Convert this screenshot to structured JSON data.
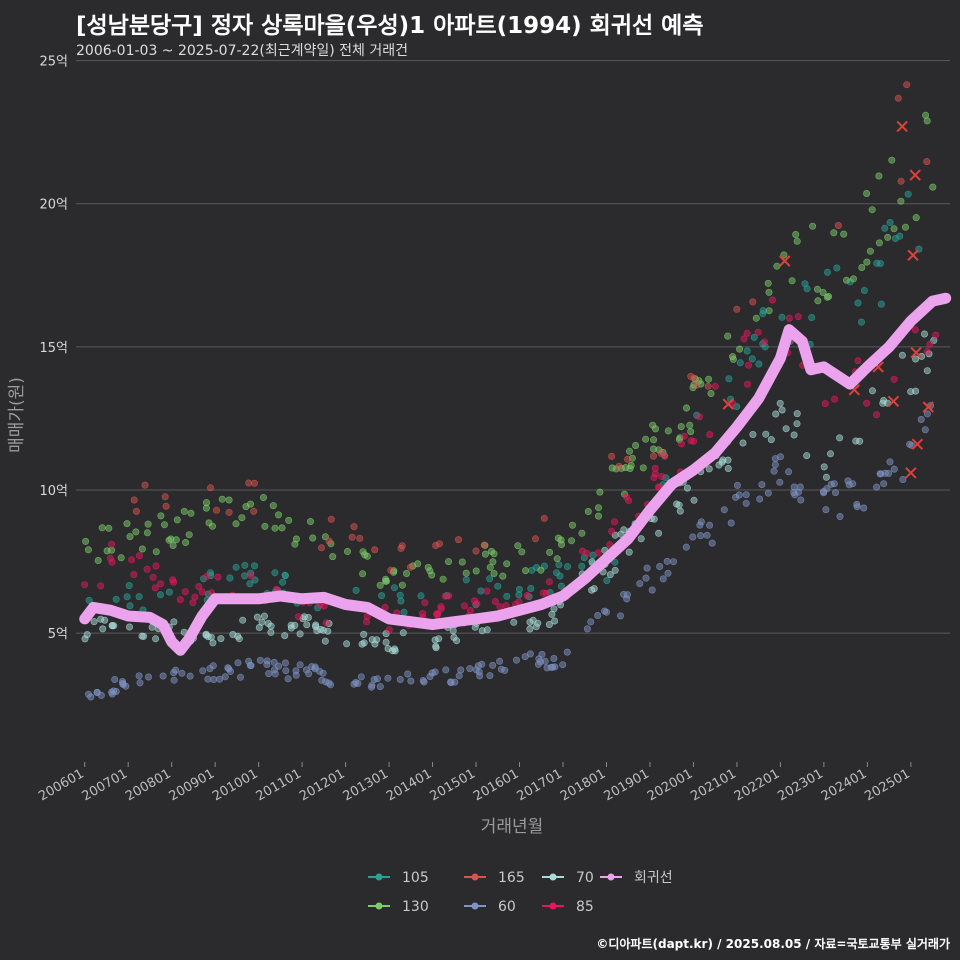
{
  "header": {
    "title": "[성남분당구] 정자 상록마을(우성)1 아파트(1994) 회귀선 예측",
    "subtitle": "2006-01-03 ~ 2025-07-22(최근계약일) 전체 거래건"
  },
  "footer": {
    "credit": "©디아파트(dapt.kr) / 2025.08.05 / 자료=국토교통부 실거래가"
  },
  "chart_data": {
    "type": "scatter",
    "xlabel": "거래년월",
    "ylabel": "매매가(원)",
    "xlim": [
      2005.8,
      2025.9
    ],
    "ylim": [
      0.5,
      25.3
    ],
    "y_ticks": [
      {
        "value": 5,
        "label": "5억"
      },
      {
        "value": 10,
        "label": "10억"
      },
      {
        "value": 15,
        "label": "15억"
      },
      {
        "value": 20,
        "label": "20억"
      },
      {
        "value": 25,
        "label": "25억"
      }
    ],
    "x_ticks": [
      "200601",
      "200701",
      "200801",
      "200901",
      "201001",
      "201101",
      "201201",
      "201301",
      "201401",
      "201501",
      "201601",
      "201701",
      "201801",
      "201901",
      "202001",
      "202101",
      "202201",
      "202301",
      "202401",
      "202501"
    ],
    "grid": "horizontal",
    "legend_position": "bottom",
    "legend_rows": [
      [
        "105",
        "165",
        "70",
        "회귀선"
      ],
      [
        "130",
        "60",
        "85"
      ]
    ],
    "colors": {
      "105": "#2aa198",
      "130": "#7ccc6a",
      "165": "#d9534f",
      "60": "#7f94c4",
      "70": "#a8dcd8",
      "85": "#e8175d",
      "회귀선": "#eaa3ec",
      "grid": "#5a5a5c"
    },
    "series": [
      {
        "name": "105",
        "anchors": [
          [
            2006.0,
            5.9
          ],
          [
            2008.0,
            6.5
          ],
          [
            2010.0,
            6.9
          ],
          [
            2012.0,
            6.0
          ],
          [
            2014.0,
            6.3
          ],
          [
            2016.0,
            6.7
          ],
          [
            2018.0,
            7.3
          ],
          [
            2019.5,
            10.8
          ],
          [
            2020.5,
            12.5
          ],
          [
            2021.5,
            15.0
          ],
          [
            2022.0,
            16.5
          ],
          [
            2023.0,
            16.3
          ],
          [
            2024.0,
            17.0
          ],
          [
            2025.0,
            19.0
          ],
          [
            2025.6,
            20.0
          ]
        ]
      },
      {
        "name": "130",
        "anchors": [
          [
            2006.0,
            8.0
          ],
          [
            2008.0,
            8.5
          ],
          [
            2009.0,
            9.0
          ],
          [
            2010.0,
            9.3
          ],
          [
            2011.0,
            8.4
          ],
          [
            2012.0,
            8.0
          ],
          [
            2013.0,
            7.0
          ],
          [
            2014.0,
            7.3
          ],
          [
            2015.0,
            7.5
          ],
          [
            2016.0,
            7.6
          ],
          [
            2017.0,
            8.0
          ],
          [
            2018.0,
            10.0
          ],
          [
            2019.0,
            11.5
          ],
          [
            2020.0,
            13.0
          ],
          [
            2021.0,
            15.5
          ],
          [
            2022.0,
            18.0
          ],
          [
            2023.0,
            18.0
          ],
          [
            2024.0,
            19.0
          ],
          [
            2025.0,
            21.0
          ],
          [
            2025.6,
            22.0
          ]
        ]
      },
      {
        "name": "165",
        "anchors": [
          [
            2006.0,
            9.0
          ],
          [
            2009.0,
            10.0
          ],
          [
            2011.0,
            9.0
          ],
          [
            2013.0,
            7.5
          ],
          [
            2015.0,
            8.0
          ],
          [
            2017.0,
            8.5
          ],
          [
            2018.5,
            11.0
          ],
          [
            2020.5,
            14.0
          ],
          [
            2022.0,
            19.0
          ],
          [
            2024.0,
            21.0
          ],
          [
            2025.6,
            23.5
          ]
        ]
      },
      {
        "name": "60",
        "anchors": [
          [
            2006.0,
            2.8
          ],
          [
            2007.0,
            3.3
          ],
          [
            2008.0,
            3.5
          ],
          [
            2009.0,
            3.6
          ],
          [
            2010.0,
            3.8
          ],
          [
            2011.0,
            3.6
          ],
          [
            2012.0,
            3.4
          ],
          [
            2013.0,
            3.3
          ],
          [
            2014.0,
            3.4
          ],
          [
            2015.0,
            3.6
          ],
          [
            2016.0,
            3.9
          ],
          [
            2017.0,
            4.2
          ],
          [
            2018.0,
            5.5
          ],
          [
            2019.0,
            7.0
          ],
          [
            2020.0,
            8.0
          ],
          [
            2021.0,
            9.5
          ],
          [
            2022.0,
            11.0
          ],
          [
            2023.0,
            9.5
          ],
          [
            2024.0,
            9.7
          ],
          [
            2025.0,
            11.5
          ],
          [
            2025.6,
            13.0
          ]
        ]
      },
      {
        "name": "70",
        "anchors": [
          [
            2006.0,
            5.0
          ],
          [
            2007.0,
            5.3
          ],
          [
            2008.0,
            5.0
          ],
          [
            2009.0,
            5.0
          ],
          [
            2010.0,
            5.3
          ],
          [
            2011.0,
            5.3
          ],
          [
            2012.0,
            4.9
          ],
          [
            2013.0,
            4.6
          ],
          [
            2014.0,
            4.8
          ],
          [
            2015.0,
            5.1
          ],
          [
            2016.0,
            5.4
          ],
          [
            2017.0,
            5.9
          ],
          [
            2018.0,
            7.5
          ],
          [
            2019.0,
            9.0
          ],
          [
            2020.0,
            10.0
          ],
          [
            2021.0,
            11.5
          ],
          [
            2022.0,
            13.0
          ],
          [
            2023.0,
            11.0
          ],
          [
            2024.0,
            12.5
          ],
          [
            2025.0,
            14.0
          ],
          [
            2025.6,
            16.0
          ]
        ]
      },
      {
        "name": "85",
        "anchors": [
          [
            2006.0,
            6.2
          ],
          [
            2006.8,
            8.0
          ],
          [
            2008.0,
            6.5
          ],
          [
            2010.0,
            6.6
          ],
          [
            2011.0,
            6.0
          ],
          [
            2012.0,
            5.6
          ],
          [
            2013.0,
            5.5
          ],
          [
            2014.0,
            5.8
          ],
          [
            2015.0,
            6.0
          ],
          [
            2016.0,
            6.2
          ],
          [
            2017.0,
            6.4
          ],
          [
            2018.0,
            8.5
          ],
          [
            2019.0,
            10.0
          ],
          [
            2020.0,
            11.5
          ],
          [
            2021.0,
            14.0
          ],
          [
            2022.0,
            16.0
          ],
          [
            2023.0,
            14.0
          ],
          [
            2024.0,
            13.5
          ],
          [
            2025.0,
            14.5
          ],
          [
            2025.6,
            16.5
          ]
        ]
      }
    ],
    "regression": {
      "name": "회귀선",
      "points": [
        [
          2006.0,
          5.5
        ],
        [
          2006.2,
          5.9
        ],
        [
          2006.6,
          5.8
        ],
        [
          2007.0,
          5.6
        ],
        [
          2007.5,
          5.55
        ],
        [
          2007.8,
          5.3
        ],
        [
          2008.0,
          4.7
        ],
        [
          2008.2,
          4.4
        ],
        [
          2008.4,
          4.8
        ],
        [
          2008.7,
          5.6
        ],
        [
          2009.0,
          6.2
        ],
        [
          2009.5,
          6.2
        ],
        [
          2010.0,
          6.2
        ],
        [
          2010.5,
          6.3
        ],
        [
          2011.0,
          6.2
        ],
        [
          2011.5,
          6.25
        ],
        [
          2012.0,
          6.0
        ],
        [
          2012.5,
          5.9
        ],
        [
          2013.0,
          5.5
        ],
        [
          2013.5,
          5.4
        ],
        [
          2014.0,
          5.3
        ],
        [
          2014.5,
          5.4
        ],
        [
          2015.0,
          5.5
        ],
        [
          2015.5,
          5.6
        ],
        [
          2016.0,
          5.8
        ],
        [
          2016.5,
          6.0
        ],
        [
          2017.0,
          6.3
        ],
        [
          2017.5,
          6.9
        ],
        [
          2018.0,
          7.6
        ],
        [
          2018.5,
          8.3
        ],
        [
          2019.0,
          9.3
        ],
        [
          2019.5,
          10.2
        ],
        [
          2020.0,
          10.7
        ],
        [
          2020.5,
          11.3
        ],
        [
          2021.0,
          12.2
        ],
        [
          2021.5,
          13.2
        ],
        [
          2022.0,
          14.6
        ],
        [
          2022.2,
          15.6
        ],
        [
          2022.5,
          15.2
        ],
        [
          2022.7,
          14.2
        ],
        [
          2023.0,
          14.3
        ],
        [
          2023.3,
          14.0
        ],
        [
          2023.6,
          13.7
        ],
        [
          2024.0,
          14.3
        ],
        [
          2024.5,
          15.0
        ],
        [
          2025.0,
          15.9
        ],
        [
          2025.5,
          16.6
        ],
        [
          2025.8,
          16.7
        ]
      ]
    }
  },
  "legend": {
    "items": [
      {
        "key": "105",
        "label": "105"
      },
      {
        "key": "165",
        "label": "165"
      },
      {
        "key": "70",
        "label": "70"
      },
      {
        "key": "회귀선",
        "label": "회귀선"
      },
      {
        "key": "130",
        "label": "130"
      },
      {
        "key": "60",
        "label": "60"
      },
      {
        "key": "85",
        "label": "85"
      }
    ]
  }
}
